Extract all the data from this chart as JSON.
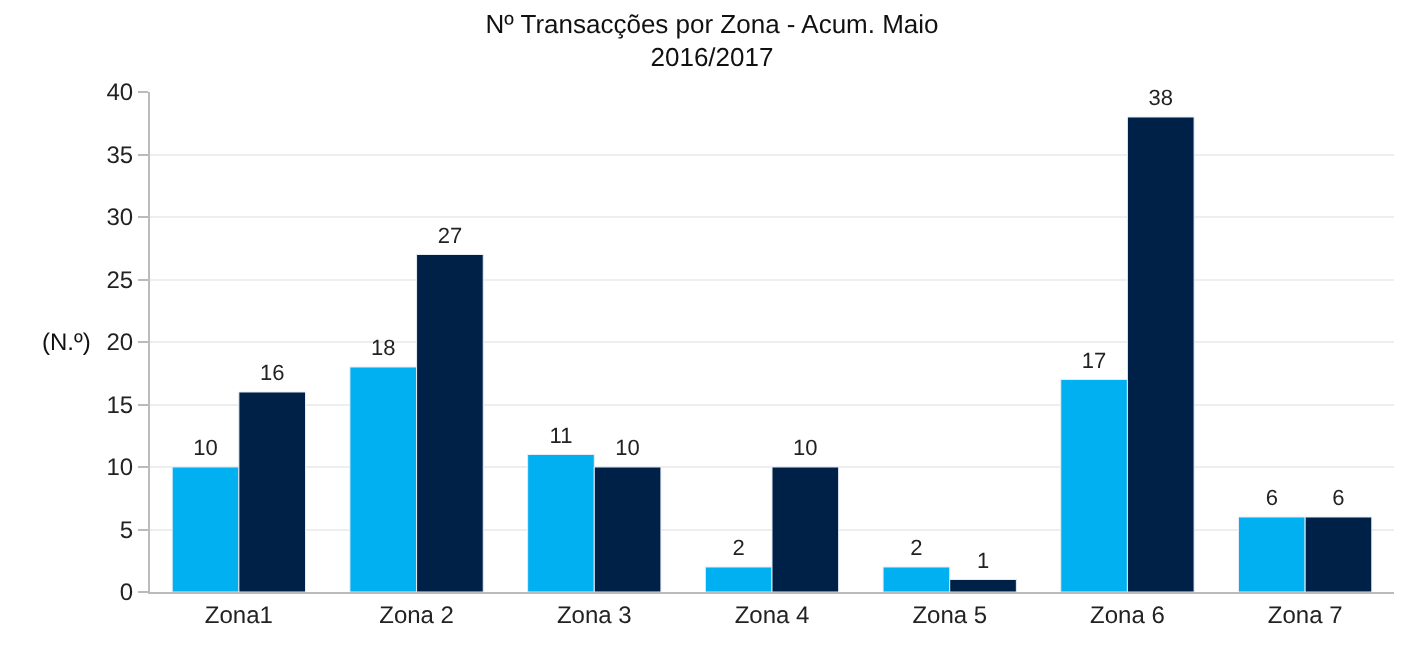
{
  "chart_data": {
    "type": "bar",
    "title": "Nº Transacções por Zona - Acum. Maio\n2016/2017",
    "ylabel": "(N.º)",
    "categories": [
      "Zona1",
      "Zona 2",
      "Zona 3",
      "Zona 4",
      "Zona 5",
      "Zona 6",
      "Zona 7"
    ],
    "series": [
      {
        "color": "#00b0f0",
        "values": [
          10,
          18,
          11,
          2,
          2,
          17,
          6
        ]
      },
      {
        "color": "#002147",
        "values": [
          16,
          27,
          10,
          10,
          1,
          38,
          6
        ]
      }
    ],
    "ylim": [
      0,
      40
    ],
    "yticks": [
      0,
      5,
      10,
      15,
      20,
      25,
      30,
      35,
      40
    ],
    "grid": "y",
    "legend": false,
    "data_labels": true
  }
}
